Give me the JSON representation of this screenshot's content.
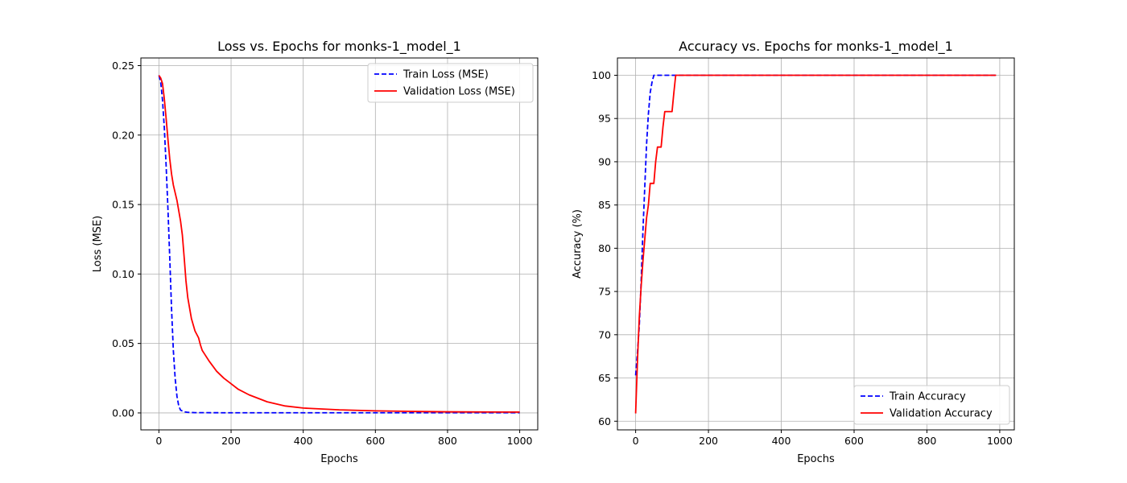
{
  "chart_data": [
    {
      "type": "line",
      "title": "Loss vs. Epochs for monks-1_model_1",
      "xlabel": "Epochs",
      "ylabel": "Loss (MSE)",
      "xlim": [
        -50,
        1050
      ],
      "ylim": [
        -0.0122,
        0.2555
      ],
      "xticks": [
        0,
        200,
        400,
        600,
        800,
        1000
      ],
      "yticks": [
        0.0,
        0.05,
        0.1,
        0.15,
        0.2,
        0.25
      ],
      "xtick_labels": [
        "0",
        "200",
        "400",
        "600",
        "800",
        "1000"
      ],
      "ytick_labels": [
        "0.00",
        "0.05",
        "0.10",
        "0.15",
        "0.20",
        "0.25"
      ],
      "grid": true,
      "legend": "upper right",
      "series": [
        {
          "name": "Train Loss (MSE)",
          "color": "#0000ff",
          "style": "dashed",
          "points": [
            [
              0,
              0.243
            ],
            [
              5,
              0.238
            ],
            [
              10,
              0.225
            ],
            [
              15,
              0.205
            ],
            [
              20,
              0.178
            ],
            [
              25,
              0.147
            ],
            [
              30,
              0.112
            ],
            [
              35,
              0.075
            ],
            [
              40,
              0.045
            ],
            [
              45,
              0.025
            ],
            [
              50,
              0.012
            ],
            [
              55,
              0.005
            ],
            [
              60,
              0.002
            ],
            [
              70,
              0.0008
            ],
            [
              80,
              0.0004
            ],
            [
              100,
              0.0002
            ],
            [
              200,
              0.0001
            ],
            [
              400,
              0.0001
            ],
            [
              600,
              0.0001
            ],
            [
              800,
              0.0001
            ],
            [
              1000,
              0.0001
            ]
          ]
        },
        {
          "name": "Validation Loss (MSE)",
          "color": "#ff0000",
          "style": "solid",
          "points": [
            [
              0,
              0.243
            ],
            [
              5,
              0.241
            ],
            [
              10,
              0.237
            ],
            [
              15,
              0.226
            ],
            [
              20,
              0.212
            ],
            [
              25,
              0.197
            ],
            [
              30,
              0.183
            ],
            [
              35,
              0.172
            ],
            [
              40,
              0.164
            ],
            [
              50,
              0.153
            ],
            [
              60,
              0.138
            ],
            [
              65,
              0.128
            ],
            [
              70,
              0.112
            ],
            [
              75,
              0.095
            ],
            [
              80,
              0.083
            ],
            [
              90,
              0.068
            ],
            [
              100,
              0.059
            ],
            [
              110,
              0.054
            ],
            [
              115,
              0.049
            ],
            [
              120,
              0.045
            ],
            [
              140,
              0.037
            ],
            [
              160,
              0.03
            ],
            [
              180,
              0.025
            ],
            [
              200,
              0.021
            ],
            [
              220,
              0.017
            ],
            [
              250,
              0.013
            ],
            [
              300,
              0.008
            ],
            [
              350,
              0.005
            ],
            [
              400,
              0.0035
            ],
            [
              500,
              0.0022
            ],
            [
              600,
              0.0015
            ],
            [
              700,
              0.0011
            ],
            [
              800,
              0.0008
            ],
            [
              900,
              0.0007
            ],
            [
              1000,
              0.0006
            ]
          ]
        }
      ]
    },
    {
      "type": "line",
      "title": "Accuracy vs. Epochs for monks-1_model_1",
      "xlabel": "Epochs",
      "ylabel": "Accuracy (%)",
      "xlim": [
        -50,
        1040
      ],
      "ylim": [
        59.0,
        102.0
      ],
      "xticks": [
        0,
        200,
        400,
        600,
        800,
        1000
      ],
      "yticks": [
        60,
        65,
        70,
        75,
        80,
        85,
        90,
        95,
        100
      ],
      "xtick_labels": [
        "0",
        "200",
        "400",
        "600",
        "800",
        "1000"
      ],
      "ytick_labels": [
        "60",
        "65",
        "70",
        "75",
        "80",
        "85",
        "90",
        "95",
        "100"
      ],
      "grid": true,
      "legend": "lower right",
      "series": [
        {
          "name": "Train Accuracy",
          "color": "#0000ff",
          "style": "dashed",
          "points": [
            [
              0,
              65.3
            ],
            [
              5,
              68.0
            ],
            [
              10,
              71.0
            ],
            [
              15,
              76.0
            ],
            [
              20,
              82.0
            ],
            [
              25,
              87.0
            ],
            [
              30,
              92.0
            ],
            [
              35,
              95.5
            ],
            [
              40,
              98.0
            ],
            [
              45,
              99.2
            ],
            [
              50,
              100
            ],
            [
              990,
              100
            ]
          ]
        },
        {
          "name": "Validation Accuracy",
          "color": "#ff0000",
          "style": "solid",
          "points": [
            [
              0,
              60.9
            ],
            [
              5,
              67.0
            ],
            [
              10,
              72.0
            ],
            [
              15,
              75.5
            ],
            [
              20,
              78.5
            ],
            [
              25,
              81.0
            ],
            [
              30,
              83.5
            ],
            [
              35,
              85.0
            ],
            [
              40,
              87.5
            ],
            [
              50,
              87.5
            ],
            [
              55,
              90.0
            ],
            [
              60,
              91.7
            ],
            [
              70,
              91.7
            ],
            [
              75,
              94.0
            ],
            [
              80,
              95.8
            ],
            [
              100,
              95.8
            ],
            [
              105,
              98.0
            ],
            [
              110,
              100
            ],
            [
              990,
              100
            ]
          ]
        }
      ]
    }
  ]
}
